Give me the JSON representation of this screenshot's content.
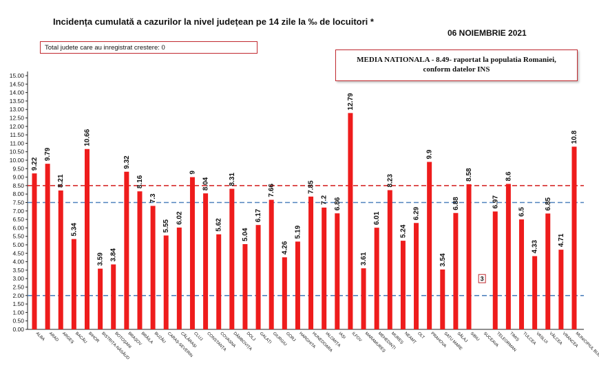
{
  "header": {
    "title": "Incidența cumulată a cazurilor la nivel județean pe 14 zile la ‰ de locuitori *",
    "date": "06 NOIEMBRIE 2021",
    "growth_note": "Total judete care au inregistrat crestere: 0",
    "national_average_line1": "MEDIA NATIONALA - 8.49-  raportat la populatia Romaniei,",
    "national_average_line2": "conform datelor INS"
  },
  "colors": {
    "bar": "#ee1c1c",
    "line_red": "#d62828",
    "line_blue": "#4f81bd",
    "line_green": "#70ad47",
    "box_border": "#c0272d"
  },
  "chart_data": {
    "type": "bar",
    "ylim": [
      0,
      15
    ],
    "yticks": [
      "0.00",
      "0.50",
      "1.00",
      "1.50",
      "2.00",
      "2.50",
      "3.00",
      "3.50",
      "4.00",
      "4.50",
      "5.00",
      "5.50",
      "6.00",
      "6.50",
      "7.00",
      "7.50",
      "8.00",
      "8.50",
      "9.00",
      "9.50",
      "10.00",
      "10.50",
      "11.00",
      "11.50",
      "12.00",
      "12.50",
      "13.00",
      "13.50",
      "14.00",
      "14.50",
      "15.00"
    ],
    "categories": [
      "ALBA",
      "ARAD",
      "ARGEȘ",
      "BACĂU",
      "BIHOR",
      "BISTRIȚA-NĂSĂUD",
      "BOTOȘANI",
      "BRAȘOV",
      "BRĂILA",
      "BUZĂU",
      "CARAȘ-SEVERIN",
      "CĂLĂRAȘI",
      "CLUJ",
      "CONSTANȚA",
      "COVASNA",
      "DÂMBOVIȚA",
      "DOLJ",
      "GALAȚI",
      "GIURGIU",
      "GORJ",
      "HARGHITA",
      "HUNEDOARA",
      "IALOMIȚA",
      "IAȘI",
      "ILFOV",
      "MARAMUREȘ",
      "MEHEDINȚI",
      "MUREȘ",
      "NEAMȚ",
      "OLT",
      "PRAHOVA",
      "SATU MARE",
      "SĂLAJ",
      "SIBIU",
      "SUCEAVA",
      "TELEORMAN",
      "TIMIȘ",
      "TULCEA",
      "VASLUI",
      "VÂLCEA",
      "VRANCEA",
      "MUNICIPIUL BUCUREȘTI"
    ],
    "values": [
      9.22,
      9.79,
      8.21,
      5.34,
      10.66,
      3.59,
      3.84,
      9.32,
      8.16,
      7.3,
      5.55,
      6.02,
      9,
      8.04,
      5.62,
      8.31,
      5.04,
      6.17,
      7.66,
      4.26,
      5.19,
      7.85,
      7.2,
      6.86,
      12.79,
      3.61,
      6.01,
      8.23,
      5.24,
      6.29,
      9.9,
      3.54,
      6.88,
      8.58,
      3,
      6.97,
      8.6,
      6.5,
      4.33,
      6.85,
      4.71,
      10.8
    ],
    "value_labels": [
      "9.22",
      "9.79",
      "8.21",
      "5.34",
      "10.66",
      "3.59",
      "3.84",
      "9.32",
      "8.16",
      "7.3",
      "5.55",
      "6.02",
      "9",
      "8.04",
      "5.62",
      "8.31",
      "5.04",
      "6.17",
      "7.66",
      "4.26",
      "5.19",
      "7.85",
      "7.2",
      "6.86",
      "12.79",
      "3.61",
      "6.01",
      "8.23",
      "5.24",
      "6.29",
      "9.9",
      "3.54",
      "6.88",
      "8.58",
      "3",
      "6.97",
      "8.6",
      "6.5",
      "4.33",
      "6.85",
      "4.71",
      "10.8"
    ],
    "reference_lines": [
      {
        "value": 8.5,
        "color": "#d62828",
        "style": "dashed"
      },
      {
        "value": 7.5,
        "color": "#4f81bd",
        "style": "dashed"
      },
      {
        "value": 2.0,
        "color": "#4f81bd",
        "style": "dashed"
      }
    ],
    "grid": false
  }
}
